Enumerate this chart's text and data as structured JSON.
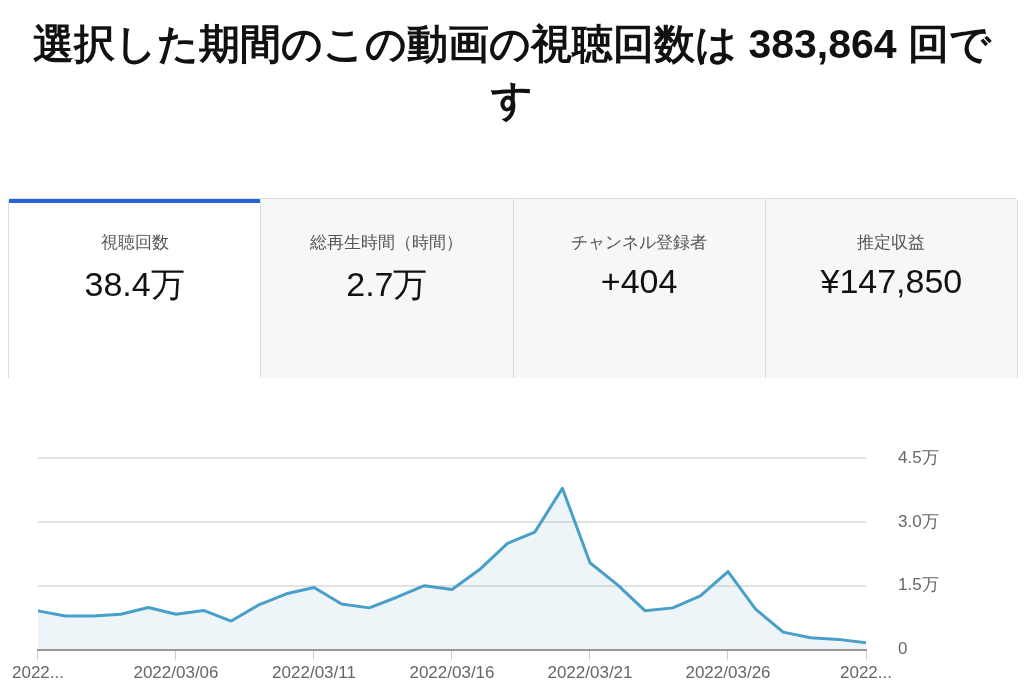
{
  "chart_data": [
    {
      "type": "other",
      "title": "選択した期間のこの動画の視聴回数は 383,864 回です",
      "annotations": [
        "視聴回数",
        "38.4万",
        "総再生時間（時間）",
        "2.7万",
        "チャンネル登録者",
        "+404",
        "推定収益",
        "¥147,850"
      ]
    },
    {
      "type": "area",
      "color": "#4a9fc9",
      "marker": "none",
      "grid": "y",
      "legend": false,
      "x": [
        "2022-03-01",
        "2022-03-02",
        "2022-03-03",
        "2022-03-04",
        "2022-03-05",
        "2022-03-06",
        "2022-03-07",
        "2022-03-08",
        "2022-03-09",
        "2022-03-10",
        "2022-03-11",
        "2022-03-12",
        "2022-03-13",
        "2022-03-14",
        "2022-03-15",
        "2022-03-16",
        "2022-03-17",
        "2022-03-18",
        "2022-03-19",
        "2022-03-20",
        "2022-03-21",
        "2022-03-22",
        "2022-03-23",
        "2022-03-24",
        "2022-03-25",
        "2022-03-26",
        "2022-03-27",
        "2022-03-28",
        "2022-03-29",
        "2022-03-30",
        "2022-03-31"
      ],
      "values": [
        0.91,
        0.79,
        0.79,
        0.83,
        0.99,
        0.83,
        0.92,
        0.67,
        1.05,
        1.31,
        1.46,
        1.07,
        0.98,
        1.23,
        1.5,
        1.41,
        1.88,
        2.49,
        2.76,
        3.79,
        2.04,
        1.52,
        0.91,
        0.98,
        1.26,
        1.83,
        0.95,
        0.41,
        0.28,
        0.24,
        0.16
      ],
      "xlim": [
        "2022-03-01",
        "2022-03-31"
      ],
      "xticks": [
        {
          "value": "2022-03-01",
          "label": "2022..."
        },
        {
          "value": "2022-03-06",
          "label": "2022/03/06"
        },
        {
          "value": "2022-03-11",
          "label": "2022/03/11"
        },
        {
          "value": "2022-03-16",
          "label": "2022/03/16"
        },
        {
          "value": "2022-03-21",
          "label": "2022/03/21"
        },
        {
          "value": "2022-03-26",
          "label": "2022/03/26"
        },
        {
          "value": "2022-03-31",
          "label": "2022..."
        }
      ],
      "ylim": [
        0,
        4.5
      ],
      "yticks": [
        0,
        {
          "value": 1.5,
          "label": "1.5万"
        },
        {
          "value": 3,
          "label": "3.0万"
        },
        {
          "value": 4.5,
          "label": "4.5万"
        }
      ]
    }
  ]
}
